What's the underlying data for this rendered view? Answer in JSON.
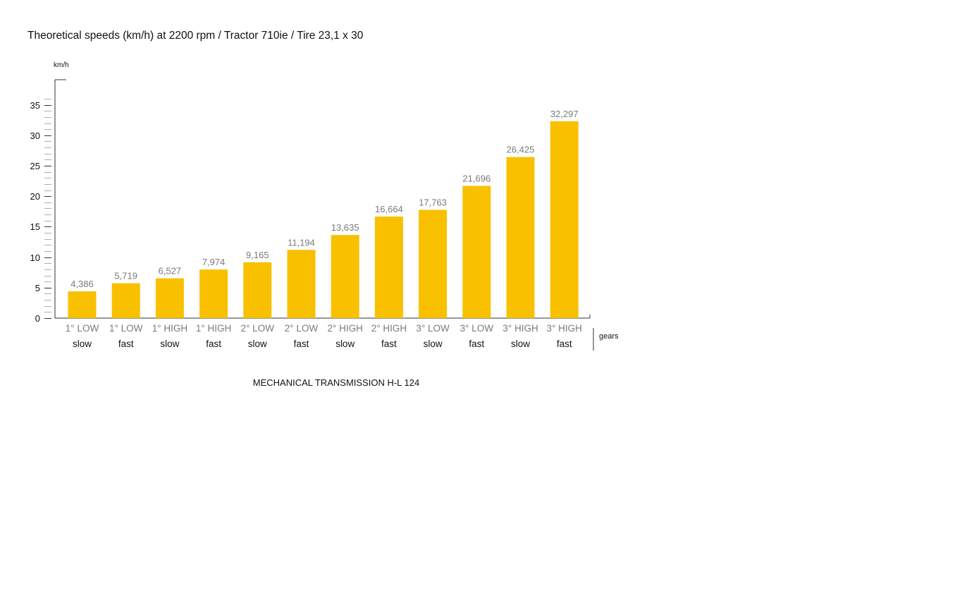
{
  "chart_data": {
    "type": "bar",
    "title": "Theoretical speeds (km/h) at 2200 rpm / Tractor 710ie / Tire 23,1 x 30",
    "ylabel": "km/h",
    "xlabel": "gears",
    "footer": "MECHANICAL TRANSMISSION H-L 124",
    "ylim": [
      0,
      38
    ],
    "yticks": [
      0,
      5,
      10,
      15,
      20,
      25,
      30,
      35
    ],
    "grid": false,
    "categories": [
      {
        "top": "1° LOW",
        "bottom": "slow"
      },
      {
        "top": "1° LOW",
        "bottom": "fast"
      },
      {
        "top": "1° HIGH",
        "bottom": "slow"
      },
      {
        "top": "1° HIGH",
        "bottom": "fast"
      },
      {
        "top": "2° LOW",
        "bottom": "slow"
      },
      {
        "top": "2° LOW",
        "bottom": "fast"
      },
      {
        "top": "2° HIGH",
        "bottom": "slow"
      },
      {
        "top": "2° HIGH",
        "bottom": "fast"
      },
      {
        "top": "3° LOW",
        "bottom": "slow"
      },
      {
        "top": "3° LOW",
        "bottom": "fast"
      },
      {
        "top": "3° HIGH",
        "bottom": "slow"
      },
      {
        "top": "3° HIGH",
        "bottom": "fast"
      }
    ],
    "values": [
      4.386,
      5.719,
      6.527,
      7.974,
      9.165,
      11.194,
      13.635,
      16.664,
      17.763,
      21.696,
      26.425,
      32.297
    ],
    "value_labels": [
      "4,386",
      "5,719",
      "6,527",
      "7,974",
      "9,165",
      "11,194",
      "13,635",
      "16,664",
      "17,763",
      "21,696",
      "26,425",
      "32,297"
    ],
    "colors": {
      "bar": "#f9c000",
      "value_text": "#7a7a7a",
      "axis": "#333333",
      "minor_tick": "#9a9a9a"
    }
  }
}
